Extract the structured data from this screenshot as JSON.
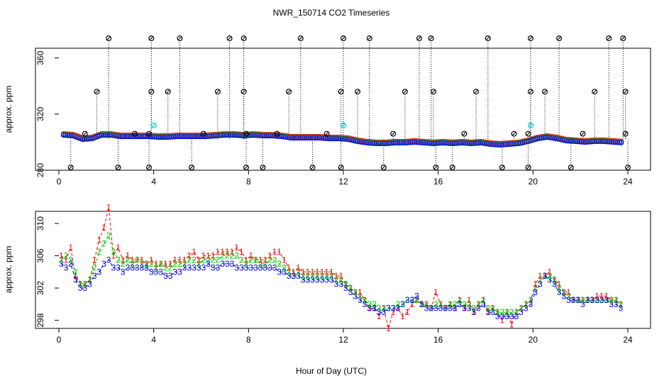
{
  "title": "NWR_150714  CO2 Timeseries",
  "xlabel": "Hour of Day (UTC)",
  "colors": {
    "series1": "#ff0000",
    "series2": "#00cc00",
    "series3": "#0000ff",
    "outlier": "#000000",
    "flagged": "#00cccc"
  },
  "chart_data": [
    {
      "type": "scatter",
      "ylabel": "approx. ppm",
      "xlim": [
        0,
        24
      ],
      "ylim": [
        280,
        372
      ],
      "xticks": [
        "0",
        "4",
        "8",
        "12",
        "16",
        "20",
        "24"
      ],
      "yticks": [
        "280",
        "320",
        "360"
      ],
      "legend": "none",
      "grid": false,
      "series": [
        {
          "points": [
            [
              0.2,
              305.5
            ],
            [
              0.6,
              305.0
            ],
            [
              1.0,
              302.5
            ],
            [
              1.4,
              303.0
            ],
            [
              1.8,
              305.5
            ],
            [
              2.2,
              305.5
            ],
            [
              2.6,
              304.5
            ],
            [
              3.0,
              304.5
            ],
            [
              3.4,
              304.5
            ],
            [
              3.8,
              304.5
            ],
            [
              4.2,
              304.0
            ],
            [
              4.6,
              304.0
            ],
            [
              5.0,
              304.5
            ],
            [
              5.4,
              304.5
            ],
            [
              5.8,
              304.5
            ],
            [
              6.2,
              304.5
            ],
            [
              6.6,
              305.0
            ],
            [
              7.0,
              305.5
            ],
            [
              7.4,
              305.5
            ],
            [
              7.8,
              305.0
            ],
            [
              8.2,
              305.5
            ],
            [
              8.6,
              305.0
            ],
            [
              9.0,
              305.0
            ],
            [
              9.4,
              304.5
            ],
            [
              9.8,
              303.5
            ],
            [
              10.2,
              303.5
            ],
            [
              10.6,
              303.5
            ],
            [
              11.0,
              303.5
            ],
            [
              11.4,
              303.0
            ],
            [
              11.8,
              303.0
            ],
            [
              12.2,
              302.5
            ],
            [
              12.6,
              301.0
            ],
            [
              13.0,
              300.0
            ],
            [
              13.4,
              299.5
            ],
            [
              13.8,
              299.5
            ],
            [
              14.2,
              300.0
            ],
            [
              14.6,
              300.0
            ],
            [
              15.0,
              300.5
            ],
            [
              15.4,
              300.0
            ],
            [
              15.8,
              299.5
            ],
            [
              16.2,
              300.0
            ],
            [
              16.6,
              299.5
            ],
            [
              17.0,
              300.0
            ],
            [
              17.4,
              299.5
            ],
            [
              17.8,
              300.0
            ],
            [
              18.2,
              299.0
            ],
            [
              18.6,
              298.5
            ],
            [
              19.0,
              299.0
            ],
            [
              19.4,
              299.5
            ],
            [
              19.8,
              301.0
            ],
            [
              20.2,
              303.0
            ],
            [
              20.6,
              304.0
            ],
            [
              21.0,
              303.0
            ],
            [
              21.4,
              301.5
            ],
            [
              21.8,
              301.0
            ],
            [
              22.2,
              300.5
            ],
            [
              22.6,
              301.0
            ],
            [
              23.0,
              301.0
            ],
            [
              23.4,
              300.5
            ],
            [
              23.8,
              300.0
            ]
          ]
        },
        {
          "outliers": [
            [
              0.5,
              282
            ],
            [
              1.1,
              306
            ],
            [
              1.6,
              336
            ],
            [
              2.1,
              374
            ],
            [
              2.5,
              282
            ],
            [
              3.2,
              306
            ],
            [
              3.8,
              282
            ],
            [
              3.8,
              306
            ],
            [
              3.9,
              336
            ],
            [
              3.9,
              374
            ],
            [
              4.6,
              336
            ],
            [
              5.1,
              374
            ],
            [
              5.6,
              282
            ],
            [
              6.1,
              306
            ],
            [
              6.7,
              336
            ],
            [
              7.2,
              374
            ],
            [
              7.8,
              374
            ],
            [
              7.8,
              336
            ],
            [
              7.9,
              306
            ],
            [
              7.9,
              282
            ],
            [
              8.6,
              282
            ],
            [
              9.2,
              306
            ],
            [
              9.7,
              336
            ],
            [
              10.2,
              374
            ],
            [
              10.7,
              282
            ],
            [
              11.3,
              306
            ],
            [
              11.9,
              282
            ],
            [
              11.9,
              336
            ],
            [
              12.0,
              374
            ],
            [
              12.6,
              336
            ],
            [
              13.1,
              374
            ],
            [
              13.7,
              282
            ],
            [
              14.1,
              306
            ],
            [
              14.6,
              336
            ],
            [
              15.2,
              374
            ],
            [
              15.7,
              374
            ],
            [
              15.8,
              336
            ],
            [
              15.9,
              282
            ],
            [
              16.6,
              282
            ],
            [
              17.1,
              306
            ],
            [
              17.6,
              336
            ],
            [
              18.1,
              374
            ],
            [
              18.7,
              282
            ],
            [
              19.2,
              306
            ],
            [
              19.8,
              282
            ],
            [
              19.8,
              306
            ],
            [
              19.9,
              336
            ],
            [
              19.9,
              374
            ],
            [
              20.5,
              336
            ],
            [
              21.1,
              374
            ],
            [
              21.6,
              282
            ],
            [
              22.1,
              306
            ],
            [
              22.6,
              336
            ],
            [
              23.2,
              374
            ],
            [
              23.8,
              374
            ],
            [
              23.9,
              336
            ],
            [
              23.9,
              306
            ],
            [
              24.0,
              282
            ]
          ],
          "flagged": [
            [
              4.0,
              312
            ],
            [
              12.0,
              312
            ],
            [
              19.9,
              312
            ]
          ]
        }
      ]
    },
    {
      "type": "line",
      "ylabel": "approx. ppm",
      "xlim": [
        0,
        24
      ],
      "ylim": [
        297,
        311.5
      ],
      "xticks": [
        "0",
        "4",
        "8",
        "12",
        "16",
        "20",
        "24"
      ],
      "yticks": [
        "298",
        "302",
        "306",
        "310"
      ],
      "legend": "none",
      "grid": false,
      "marker_labels": [
        "1",
        "2",
        "3"
      ],
      "x": [
        0.1,
        0.3,
        0.5,
        0.7,
        0.9,
        1.1,
        1.3,
        1.5,
        1.7,
        1.9,
        2.1,
        2.3,
        2.5,
        2.7,
        2.9,
        3.1,
        3.3,
        3.5,
        3.7,
        3.9,
        4.1,
        4.3,
        4.5,
        4.7,
        4.9,
        5.1,
        5.3,
        5.5,
        5.7,
        5.9,
        6.1,
        6.3,
        6.5,
        6.7,
        6.9,
        7.1,
        7.3,
        7.5,
        7.7,
        7.9,
        8.1,
        8.3,
        8.5,
        8.7,
        8.9,
        9.1,
        9.3,
        9.5,
        9.7,
        9.9,
        10.1,
        10.3,
        10.5,
        10.7,
        10.9,
        11.1,
        11.3,
        11.5,
        11.7,
        11.9,
        12.1,
        12.3,
        12.5,
        12.7,
        12.9,
        13.1,
        13.3,
        13.5,
        13.7,
        13.9,
        14.1,
        14.3,
        14.5,
        14.7,
        14.9,
        15.1,
        15.3,
        15.5,
        15.7,
        15.9,
        16.1,
        16.3,
        16.5,
        16.7,
        16.9,
        17.1,
        17.3,
        17.5,
        17.7,
        17.9,
        18.1,
        18.3,
        18.5,
        18.7,
        18.9,
        19.1,
        19.3,
        19.5,
        19.7,
        19.9,
        20.1,
        20.3,
        20.5,
        20.7,
        20.9,
        21.1,
        21.3,
        21.5,
        21.7,
        21.9,
        22.1,
        22.3,
        22.5,
        22.7,
        22.9,
        23.1,
        23.3,
        23.5,
        23.7
      ],
      "series": [
        {
          "values": [
            306.0,
            305.5,
            307.0,
            303.5,
            302.5,
            302.5,
            303.0,
            305.5,
            308.0,
            309.5,
            312.0,
            306.0,
            307.0,
            305.5,
            306.0,
            305.5,
            305.5,
            305.5,
            305.0,
            305.5,
            305.0,
            305.0,
            305.0,
            305.0,
            305.5,
            305.5,
            305.5,
            306.0,
            306.5,
            305.5,
            306.0,
            306.0,
            306.0,
            306.5,
            306.5,
            306.5,
            306.5,
            307.0,
            306.5,
            305.5,
            306.0,
            305.5,
            305.5,
            305.5,
            306.0,
            306.5,
            306.5,
            305.5,
            304.5,
            304.0,
            304.5,
            304.0,
            304.0,
            304.0,
            304.0,
            304.0,
            304.0,
            304.0,
            303.5,
            303.5,
            302.5,
            302.0,
            301.5,
            301.5,
            300.5,
            299.5,
            299.5,
            298.5,
            299.5,
            297.0,
            299.0,
            299.5,
            298.5,
            299.0,
            300.0,
            300.5,
            300.0,
            300.0,
            299.5,
            301.5,
            300.0,
            299.5,
            300.0,
            299.5,
            300.5,
            299.5,
            300.5,
            299.0,
            300.0,
            300.5,
            299.0,
            299.5,
            299.0,
            298.0,
            299.0,
            297.5,
            299.0,
            299.5,
            300.0,
            300.5,
            302.5,
            303.5,
            303.5,
            304.0,
            303.0,
            302.5,
            301.5,
            301.5,
            300.5,
            300.5,
            300.5,
            300.5,
            300.5,
            301.0,
            301.0,
            301.0,
            300.5,
            300.5,
            300.0
          ]
        },
        {
          "values": [
            305.5,
            306.0,
            305.5,
            304.0,
            302.5,
            302.5,
            303.0,
            304.5,
            306.5,
            307.5,
            308.5,
            306.5,
            305.5,
            305.0,
            305.5,
            305.0,
            305.5,
            305.0,
            305.0,
            305.0,
            304.5,
            305.0,
            304.5,
            304.5,
            305.0,
            305.0,
            305.0,
            305.5,
            305.5,
            305.0,
            305.5,
            305.5,
            305.5,
            305.5,
            306.0,
            306.0,
            306.0,
            306.0,
            305.5,
            305.0,
            305.5,
            305.5,
            305.0,
            305.0,
            305.5,
            305.5,
            305.0,
            304.5,
            304.0,
            303.5,
            304.0,
            303.5,
            303.5,
            303.5,
            303.5,
            303.5,
            303.5,
            303.5,
            303.0,
            303.0,
            302.5,
            302.0,
            301.5,
            301.0,
            300.5,
            300.0,
            300.0,
            299.5,
            299.5,
            299.5,
            299.5,
            300.0,
            300.0,
            300.5,
            300.5,
            300.5,
            300.0,
            300.0,
            299.5,
            300.0,
            300.0,
            299.5,
            300.0,
            300.0,
            300.5,
            300.0,
            300.0,
            299.5,
            300.0,
            300.5,
            299.5,
            299.5,
            299.0,
            299.0,
            299.0,
            299.0,
            299.0,
            299.5,
            300.0,
            300.5,
            302.0,
            303.0,
            303.5,
            303.5,
            303.0,
            302.0,
            301.5,
            301.0,
            300.5,
            300.5,
            300.5,
            300.5,
            300.5,
            300.5,
            300.5,
            300.5,
            300.5,
            300.5,
            300.0
          ]
        },
        {
          "values": [
            305.0,
            304.5,
            305.0,
            303.0,
            302.0,
            302.0,
            302.5,
            303.5,
            304.0,
            305.0,
            305.5,
            304.5,
            304.5,
            304.0,
            304.5,
            304.5,
            304.5,
            304.5,
            304.5,
            304.0,
            304.0,
            304.0,
            303.5,
            303.5,
            304.0,
            304.0,
            304.5,
            304.5,
            304.5,
            304.5,
            304.5,
            305.0,
            304.5,
            304.5,
            305.0,
            305.0,
            305.0,
            304.5,
            304.5,
            304.5,
            304.5,
            304.5,
            304.5,
            304.5,
            304.5,
            304.5,
            304.0,
            304.0,
            303.5,
            303.5,
            303.5,
            303.0,
            303.0,
            303.0,
            303.0,
            303.0,
            303.0,
            303.0,
            302.5,
            302.5,
            302.0,
            301.5,
            301.0,
            300.5,
            300.0,
            299.5,
            299.5,
            299.0,
            299.0,
            299.5,
            299.5,
            299.5,
            300.0,
            300.5,
            300.5,
            301.0,
            300.0,
            299.5,
            299.5,
            299.5,
            299.5,
            299.5,
            299.5,
            299.5,
            300.0,
            299.5,
            299.5,
            299.0,
            299.5,
            300.0,
            299.0,
            299.0,
            298.5,
            298.5,
            298.5,
            298.5,
            298.5,
            299.0,
            299.5,
            300.0,
            301.5,
            302.5,
            303.5,
            303.0,
            302.5,
            301.5,
            301.0,
            300.5,
            300.5,
            300.5,
            300.0,
            300.5,
            300.5,
            300.5,
            300.5,
            300.5,
            300.0,
            300.0,
            299.5
          ]
        }
      ]
    }
  ]
}
